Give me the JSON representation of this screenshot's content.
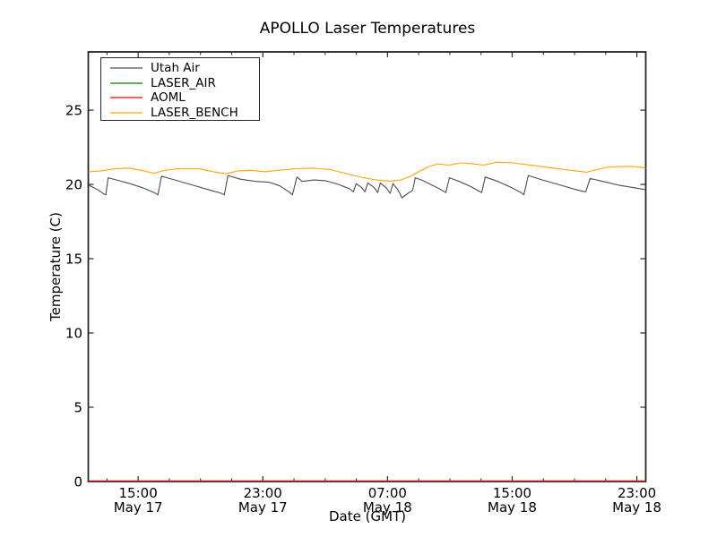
{
  "window": {
    "background": "#ffffff"
  },
  "chart_data": {
    "type": "line",
    "title": "APOLLO Laser Temperatures",
    "xlabel": "Date (GMT)",
    "ylabel": "Temperature (C)",
    "x_encoding": "decimal hours since May 17 00:00 GMT",
    "xlim": [
      11.8,
      47.57
    ],
    "ylim": [
      0,
      28.92
    ],
    "grid": false,
    "legend_position": "upper left",
    "tick_direction": "in",
    "axis_color": "#262626",
    "x_major_ticks": [
      {
        "t": 15,
        "line1": "15:00",
        "line2": "May 17"
      },
      {
        "t": 23,
        "line1": "23:00",
        "line2": "May 17"
      },
      {
        "t": 31,
        "line1": "07:00",
        "line2": "May 18"
      },
      {
        "t": 39,
        "line1": "15:00",
        "line2": "May 18"
      },
      {
        "t": 47,
        "line1": "23:00",
        "line2": "May 18"
      }
    ],
    "x_minor_ticks": [
      13,
      17,
      19,
      21,
      25,
      27,
      29,
      33,
      35,
      37,
      41,
      43,
      45
    ],
    "y_ticks": [
      {
        "v": 0,
        "label": "0"
      },
      {
        "v": 5,
        "label": "5"
      },
      {
        "v": 10,
        "label": "10"
      },
      {
        "v": 15,
        "label": "15"
      },
      {
        "v": 20,
        "label": "20"
      },
      {
        "v": 25,
        "label": "25"
      }
    ],
    "series": [
      {
        "name": "Utah Air",
        "color": "#4d4d4d",
        "points": [
          [
            11.81,
            19.95
          ],
          [
            12.12,
            19.8
          ],
          [
            12.47,
            19.6
          ],
          [
            12.81,
            19.35
          ],
          [
            12.93,
            19.3
          ],
          [
            13.07,
            20.45
          ],
          [
            13.62,
            20.3
          ],
          [
            14.48,
            20.05
          ],
          [
            15.35,
            19.75
          ],
          [
            16.04,
            19.45
          ],
          [
            16.27,
            19.3
          ],
          [
            16.5,
            20.55
          ],
          [
            17.36,
            20.3
          ],
          [
            18.51,
            19.95
          ],
          [
            19.66,
            19.6
          ],
          [
            20.35,
            19.4
          ],
          [
            20.53,
            19.3
          ],
          [
            20.76,
            20.6
          ],
          [
            21.56,
            20.35
          ],
          [
            22.54,
            20.2
          ],
          [
            23.4,
            20.15
          ],
          [
            24.09,
            19.9
          ],
          [
            24.67,
            19.5
          ],
          [
            24.9,
            19.3
          ],
          [
            25.19,
            20.5
          ],
          [
            25.53,
            20.2
          ],
          [
            26.28,
            20.3
          ],
          [
            27.03,
            20.25
          ],
          [
            27.84,
            20.0
          ],
          [
            28.58,
            19.7
          ],
          [
            28.81,
            19.5
          ],
          [
            28.99,
            20.05
          ],
          [
            29.33,
            19.8
          ],
          [
            29.56,
            19.5
          ],
          [
            29.73,
            20.1
          ],
          [
            30.14,
            19.8
          ],
          [
            30.37,
            19.45
          ],
          [
            30.54,
            20.1
          ],
          [
            30.94,
            19.75
          ],
          [
            31.17,
            19.4
          ],
          [
            31.35,
            20.05
          ],
          [
            31.69,
            19.6
          ],
          [
            31.92,
            19.1
          ],
          [
            32.32,
            19.4
          ],
          [
            32.61,
            19.6
          ],
          [
            32.78,
            20.45
          ],
          [
            33.19,
            20.3
          ],
          [
            33.76,
            20.0
          ],
          [
            34.34,
            19.7
          ],
          [
            34.74,
            19.45
          ],
          [
            34.97,
            20.45
          ],
          [
            35.6,
            20.2
          ],
          [
            36.35,
            19.85
          ],
          [
            36.87,
            19.55
          ],
          [
            37.04,
            19.45
          ],
          [
            37.27,
            20.5
          ],
          [
            38.08,
            20.2
          ],
          [
            38.94,
            19.8
          ],
          [
            39.57,
            19.45
          ],
          [
            39.75,
            19.3
          ],
          [
            40.03,
            20.6
          ],
          [
            40.95,
            20.3
          ],
          [
            42.1,
            19.95
          ],
          [
            43.26,
            19.6
          ],
          [
            43.72,
            19.5
          ],
          [
            44.0,
            20.4
          ],
          [
            44.81,
            20.2
          ],
          [
            45.85,
            19.95
          ],
          [
            46.71,
            19.8
          ],
          [
            47.57,
            19.65
          ]
        ]
      },
      {
        "name": "LASER_AIR",
        "color": "#008000",
        "points": [
          [
            11.8,
            0
          ],
          [
            47.57,
            0
          ]
        ]
      },
      {
        "name": "AOML",
        "color": "#ff0000",
        "points": [
          [
            11.8,
            0
          ],
          [
            47.57,
            0
          ]
        ]
      },
      {
        "name": "LASER_BENCH",
        "color": "#ffa500",
        "points": [
          [
            11.81,
            20.85
          ],
          [
            12.58,
            20.9
          ],
          [
            13.5,
            21.05
          ],
          [
            14.37,
            21.1
          ],
          [
            15.23,
            20.95
          ],
          [
            15.98,
            20.75
          ],
          [
            16.73,
            20.95
          ],
          [
            17.53,
            21.05
          ],
          [
            18.91,
            21.05
          ],
          [
            19.83,
            20.85
          ],
          [
            20.58,
            20.72
          ],
          [
            21.39,
            20.9
          ],
          [
            22.25,
            20.95
          ],
          [
            23.12,
            20.85
          ],
          [
            23.98,
            20.95
          ],
          [
            25.13,
            21.05
          ],
          [
            26.17,
            21.1
          ],
          [
            27.32,
            21.0
          ],
          [
            28.47,
            20.7
          ],
          [
            29.45,
            20.45
          ],
          [
            30.31,
            20.3
          ],
          [
            31.17,
            20.22
          ],
          [
            31.86,
            20.3
          ],
          [
            32.5,
            20.55
          ],
          [
            33.07,
            20.9
          ],
          [
            33.65,
            21.2
          ],
          [
            34.22,
            21.38
          ],
          [
            34.91,
            21.3
          ],
          [
            35.72,
            21.45
          ],
          [
            36.52,
            21.38
          ],
          [
            37.16,
            21.3
          ],
          [
            38.02,
            21.5
          ],
          [
            39.05,
            21.45
          ],
          [
            40.55,
            21.25
          ],
          [
            41.93,
            21.05
          ],
          [
            43.14,
            20.9
          ],
          [
            43.78,
            20.82
          ],
          [
            44.47,
            21.0
          ],
          [
            45.04,
            21.15
          ],
          [
            45.96,
            21.2
          ],
          [
            46.88,
            21.2
          ],
          [
            47.57,
            21.1
          ]
        ]
      }
    ]
  }
}
